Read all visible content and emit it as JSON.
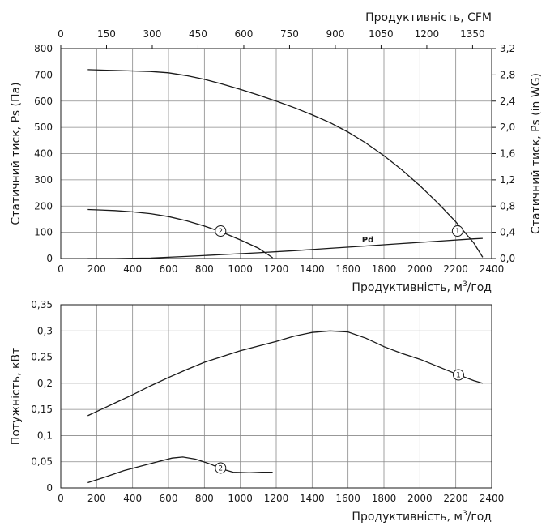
{
  "chart_data": [
    {
      "type": "line",
      "id": "pressure",
      "xlabel": "Продуктивність, м³/год",
      "xlabel_parts": [
        "Продуктивність, м",
        "3",
        "/год"
      ],
      "x_ticks": [
        0,
        200,
        400,
        600,
        800,
        1000,
        1200,
        1400,
        1600,
        1800,
        2000,
        2200,
        2400
      ],
      "xlim": [
        0,
        2400
      ],
      "top_xlabel": "Продуктивність, CFM",
      "top_x_ticks": [
        0,
        150,
        300,
        450,
        600,
        750,
        900,
        1050,
        1200,
        1350
      ],
      "top_xlim": [
        0,
        1412.6
      ],
      "ylabel_left": "Статичний тиск, Ps (Па)",
      "y_ticks": [
        0,
        100,
        200,
        300,
        400,
        500,
        600,
        700,
        800
      ],
      "ylim": [
        0,
        800
      ],
      "ylabel_right": "Статичний тиск, Ps (in WG)",
      "right_ticks": [
        "0,0",
        "0,4",
        "0,8",
        "1,2",
        "1,6",
        "2,0",
        "2,4",
        "2,8",
        "3,2"
      ],
      "grid": true,
      "series": [
        {
          "marker": "1",
          "marker_at": [
            2210,
            105
          ],
          "points": [
            [
              150,
              720
            ],
            [
              300,
              717
            ],
            [
              500,
              713
            ],
            [
              600,
              708
            ],
            [
              700,
              697
            ],
            [
              800,
              683
            ],
            [
              900,
              665
            ],
            [
              1000,
              645
            ],
            [
              1100,
              623
            ],
            [
              1200,
              600
            ],
            [
              1300,
              575
            ],
            [
              1400,
              548
            ],
            [
              1500,
              518
            ],
            [
              1600,
              482
            ],
            [
              1700,
              440
            ],
            [
              1800,
              392
            ],
            [
              1900,
              338
            ],
            [
              2000,
              278
            ],
            [
              2100,
              212
            ],
            [
              2200,
              140
            ],
            [
              2300,
              60
            ],
            [
              2350,
              5
            ]
          ]
        },
        {
          "marker": "2",
          "marker_at": [
            890,
            105
          ],
          "points": [
            [
              150,
              187
            ],
            [
              300,
              183
            ],
            [
              400,
              178
            ],
            [
              500,
              171
            ],
            [
              600,
              160
            ],
            [
              700,
              144
            ],
            [
              800,
              124
            ],
            [
              900,
              100
            ],
            [
              1000,
              71
            ],
            [
              1100,
              40
            ],
            [
              1180,
              3
            ]
          ]
        },
        {
          "label": "Pd",
          "label_at": [
            1710,
            62
          ],
          "points": [
            [
              150,
              0
            ],
            [
              300,
              0
            ],
            [
              400,
              1
            ],
            [
              500,
              2
            ],
            [
              700,
              8
            ],
            [
              900,
              15
            ],
            [
              1100,
              22
            ],
            [
              1300,
              30
            ],
            [
              1500,
              39
            ],
            [
              1700,
              48
            ],
            [
              1900,
              57
            ],
            [
              2100,
              66
            ],
            [
              2300,
              75
            ],
            [
              2350,
              77
            ]
          ]
        }
      ]
    },
    {
      "type": "line",
      "id": "power",
      "xlabel": "Продуктивність, м³/год",
      "xlabel_parts": [
        "Продуктивність, м",
        "3",
        "/год"
      ],
      "x_ticks": [
        0,
        200,
        400,
        600,
        800,
        1000,
        1200,
        1400,
        1600,
        1800,
        2000,
        2200,
        2400
      ],
      "xlim": [
        0,
        2400
      ],
      "ylabel_left": "Потужність, кВт",
      "y_ticks": [
        0,
        0.05,
        0.1,
        0.15,
        0.2,
        0.25,
        0.3,
        0.35
      ],
      "y_tick_labels": [
        "0",
        "0,05",
        "0,1",
        "0,15",
        "0,2",
        "0,25",
        "0,3",
        "0,35"
      ],
      "ylim": [
        0,
        0.35
      ],
      "grid": true,
      "series": [
        {
          "marker": "1",
          "marker_at": [
            2215,
            0.216
          ],
          "points": [
            [
              150,
              0.138
            ],
            [
              300,
              0.162
            ],
            [
              400,
              0.178
            ],
            [
              500,
              0.195
            ],
            [
              600,
              0.211
            ],
            [
              700,
              0.226
            ],
            [
              800,
              0.24
            ],
            [
              900,
              0.251
            ],
            [
              1000,
              0.262
            ],
            [
              1100,
              0.271
            ],
            [
              1200,
              0.28
            ],
            [
              1300,
              0.29
            ],
            [
              1400,
              0.297
            ],
            [
              1500,
              0.3
            ],
            [
              1600,
              0.298
            ],
            [
              1700,
              0.286
            ],
            [
              1800,
              0.27
            ],
            [
              1900,
              0.257
            ],
            [
              2000,
              0.246
            ],
            [
              2100,
              0.232
            ],
            [
              2200,
              0.218
            ],
            [
              2300,
              0.205
            ],
            [
              2350,
              0.2
            ]
          ]
        },
        {
          "marker": "2",
          "marker_at": [
            890,
            0.038
          ],
          "points": [
            [
              150,
              0.01
            ],
            [
              250,
              0.021
            ],
            [
              350,
              0.033
            ],
            [
              450,
              0.042
            ],
            [
              550,
              0.051
            ],
            [
              620,
              0.057
            ],
            [
              680,
              0.059
            ],
            [
              750,
              0.055
            ],
            [
              830,
              0.046
            ],
            [
              900,
              0.036
            ],
            [
              960,
              0.03
            ],
            [
              1050,
              0.029
            ],
            [
              1120,
              0.03
            ],
            [
              1180,
              0.03
            ]
          ]
        }
      ]
    }
  ]
}
